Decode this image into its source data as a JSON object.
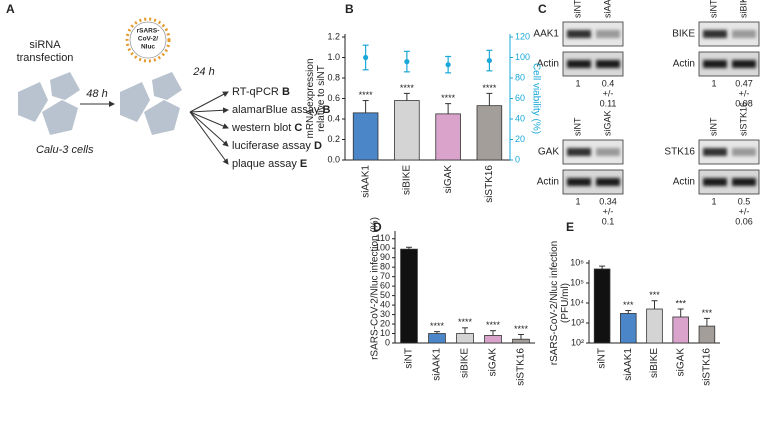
{
  "panel_labels": [
    "A",
    "B",
    "C",
    "D",
    "E"
  ],
  "diagram": {
    "transfection": [
      "siRNA",
      "transfection"
    ],
    "step1_time": "48 h",
    "step2_time": "24 h",
    "virus": [
      "rSARS-",
      "CoV-2/",
      "Nluc"
    ],
    "cells": "Calu-3 cells",
    "assays": [
      {
        "text": "RT-qPCR",
        "panel": "B"
      },
      {
        "text": "alamarBlue assay",
        "panel": "B"
      },
      {
        "text": "western blot",
        "panel": "C"
      },
      {
        "text": "luciferase assay",
        "panel": "D"
      },
      {
        "text": "plaque assay",
        "panel": "E"
      }
    ]
  },
  "blots": [
    {
      "lanes": [
        "siNT",
        "siAAK1"
      ],
      "rows": [
        "AAK1",
        "Actin"
      ],
      "quant": [
        [
          "1"
        ],
        [
          "0.4",
          "+/-",
          "0.11"
        ]
      ]
    },
    {
      "lanes": [
        "siNT",
        "siBIKE"
      ],
      "rows": [
        "BIKE",
        "Actin"
      ],
      "quant": [
        [
          "1"
        ],
        [
          "0.47",
          "+/-",
          "0.08"
        ]
      ]
    },
    {
      "lanes": [
        "siNT",
        "siGAK"
      ],
      "rows": [
        "GAK",
        "Actin"
      ],
      "quant": [
        [
          "1"
        ],
        [
          "0.34",
          "+/-",
          "0.1"
        ]
      ]
    },
    {
      "lanes": [
        "siNT",
        "siSTK16"
      ],
      "rows": [
        "STK16",
        "Actin"
      ],
      "quant": [
        [
          "1"
        ],
        [
          "0.5",
          "+/-",
          "0.06"
        ]
      ]
    }
  ],
  "chart_data": [
    {
      "type": "bar",
      "categories": [
        "siAAK1",
        "siBIKE",
        "siGAK",
        "siSTK16"
      ],
      "y_label": [
        "mRNA expression",
        "relative to siNT"
      ],
      "y2_label": [
        "Cell viability (%)"
      ],
      "ylim": [
        0,
        1.2
      ],
      "yticks": [
        {
          "value": 0,
          "label": "0.0"
        },
        0.2,
        0.4,
        0.6,
        0.8,
        {
          "value": 1,
          "label": "1.0"
        },
        1.2
      ],
      "y2lim": [
        0,
        120
      ],
      "y2ticks": [
        0,
        20,
        40,
        60,
        80,
        100,
        120
      ],
      "y2_color": "#1aa7d9",
      "series": [
        {
          "colors": [
            "#4a86c8",
            "#d4d4d4",
            "#d9a3cc",
            "#a39e9a"
          ],
          "values": [
            0.46,
            0.58,
            0.45,
            0.53
          ],
          "errors": [
            0.12,
            0.07,
            0.1,
            0.12
          ],
          "annotations": [
            "****",
            "****",
            "****",
            "****"
          ]
        },
        {
          "axis": "y2",
          "style": "points",
          "color": "#1aa7d9",
          "values": [
            100,
            96,
            93,
            97
          ],
          "errors": [
            12,
            10,
            8,
            10
          ]
        }
      ]
    },
    {
      "type": "bar",
      "categories": [
        "siNT",
        "siAAK1",
        "siBIKE",
        "siGAK",
        "siSTK16"
      ],
      "y_label": [
        "rSARS-CoV-2/Nluc infection (%)"
      ],
      "ylim": [
        0,
        115
      ],
      "yticks": [
        0,
        10,
        20,
        30,
        40,
        50,
        60,
        70,
        80,
        90,
        100,
        110
      ],
      "series": [
        {
          "colors": [
            "#111111",
            "#4a86c8",
            "#d4d4d4",
            "#d9a3cc",
            "#a39e9a"
          ],
          "values": [
            99,
            10,
            10,
            8,
            4
          ],
          "errors": [
            2,
            2,
            6,
            5,
            5
          ],
          "annotations": [
            null,
            "****",
            "****",
            "****",
            "****"
          ]
        }
      ]
    },
    {
      "type": "bar",
      "log": true,
      "categories": [
        "siNT",
        "siAAK1",
        "siBIKE",
        "siGAK",
        "siSTK16"
      ],
      "y_label": [
        "rSARS-CoV-2/Nluc infection",
        "(PFU/ml)"
      ],
      "ylim": [
        100,
        1000000
      ],
      "yticks": [
        {
          "value": 100,
          "label": "10²"
        },
        {
          "value": 1000,
          "label": "10³"
        },
        {
          "value": 10000,
          "label": "10⁴"
        },
        {
          "value": 100000,
          "label": "10⁵"
        },
        {
          "value": 1000000,
          "label": "10⁶"
        }
      ],
      "series": [
        {
          "colors": [
            "#111111",
            "#4a86c8",
            "#d4d4d4",
            "#d9a3cc",
            "#a39e9a"
          ],
          "values": [
            500000,
            3000,
            5000,
            2000,
            700
          ],
          "errors": [
            200000,
            1200,
            8000,
            3000,
            1000
          ],
          "annotations": [
            null,
            "***",
            "***",
            "***",
            "***"
          ]
        }
      ]
    }
  ]
}
